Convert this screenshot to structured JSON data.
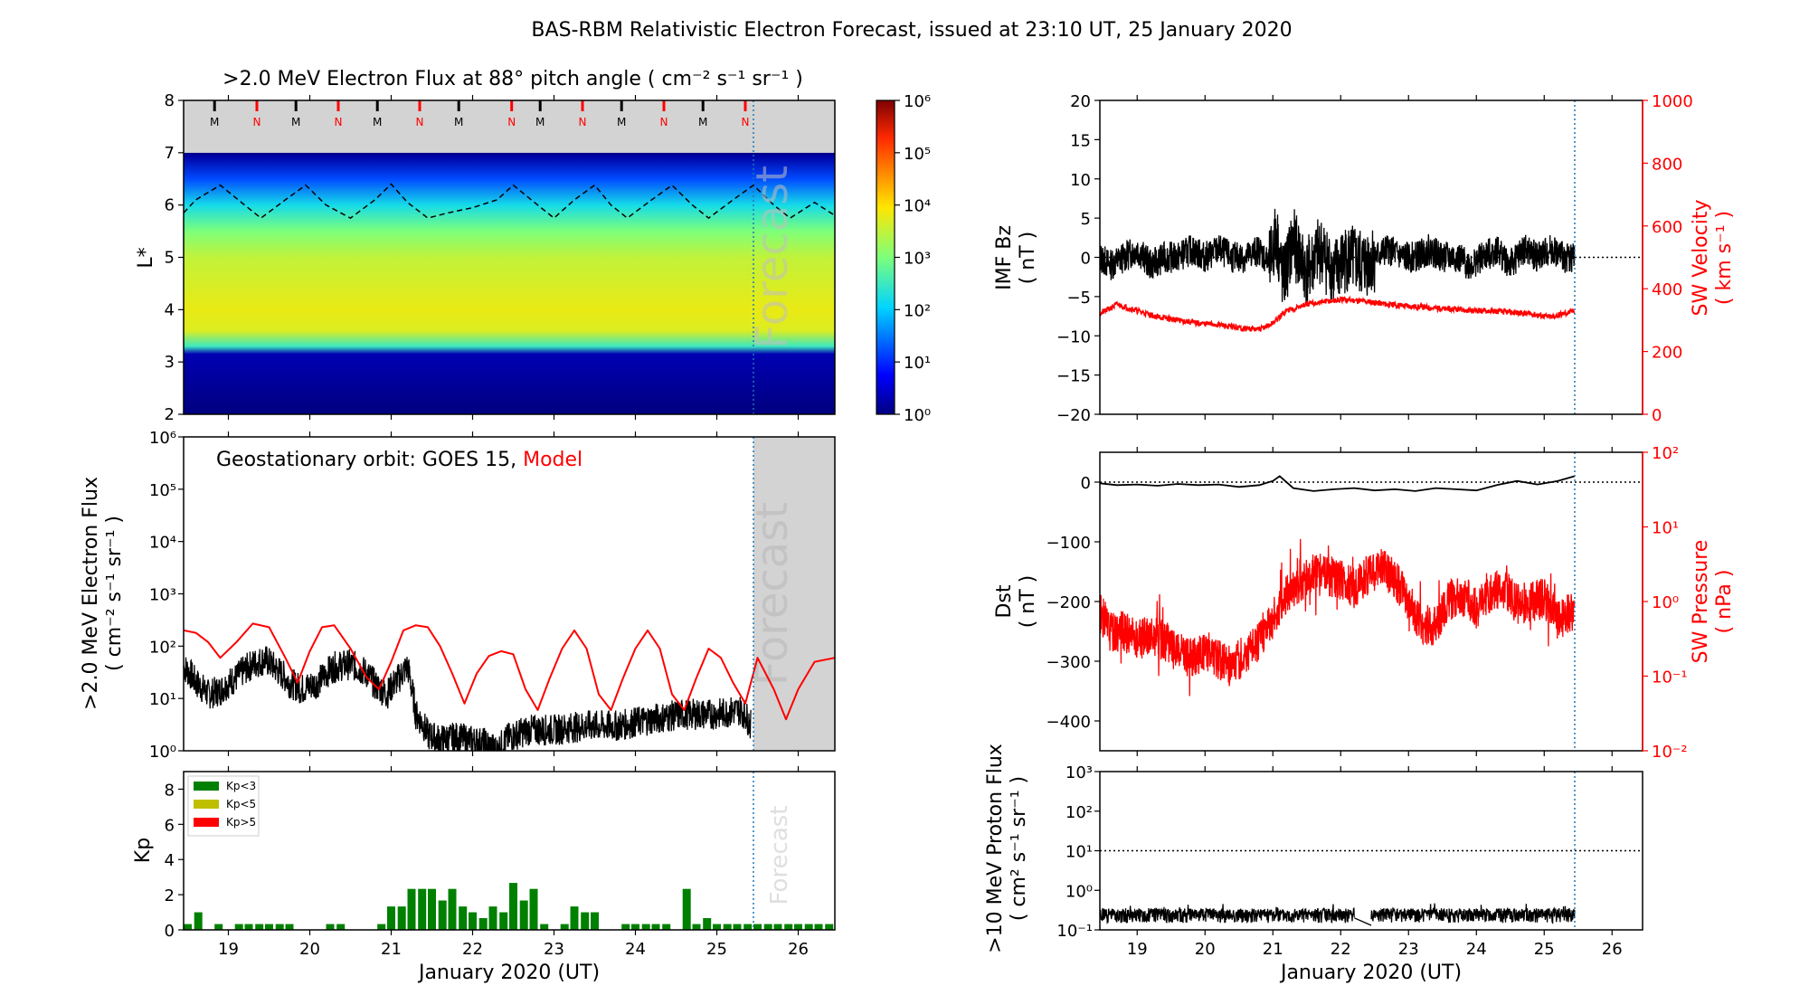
{
  "figure": {
    "title": "BAS-RBM Relativistic Electron Forecast, issued at 23:10 UT, 25 January 2020"
  },
  "colors": {
    "black": "#000000",
    "red": "#ff0000",
    "forecast_line": "#1f77b4",
    "shade": "#d3d3d3",
    "forecast_text": "#bfbfbf",
    "kp_low": "#008000",
    "kp_mid": "#bfbf00",
    "kp_high": "#ff0000"
  },
  "chart_data": [
    {
      "id": "lstar_flux",
      "type": "heatmap",
      "title": ">2.0 MeV Electron Flux at 88° pitch angle ( cm⁻² s⁻¹ sr⁻¹ )",
      "ylabel": "L*",
      "xlim": [
        18.45,
        26.45
      ],
      "ylim": [
        2,
        8
      ],
      "yticks": [
        2,
        3,
        4,
        5,
        6,
        7,
        8
      ],
      "colorbar": {
        "scale": "log",
        "range": [
          1,
          1000000
        ],
        "ticks": [
          "10⁰",
          "10¹",
          "10²",
          "10³",
          "10⁴",
          "10⁵",
          "10⁶"
        ]
      },
      "flux_profile": [
        {
          "L": 2.0,
          "log_flux": 0.0
        },
        {
          "L": 3.15,
          "log_flux": 0.3
        },
        {
          "L": 3.3,
          "log_flux": 2.5
        },
        {
          "L": 3.6,
          "log_flux": 3.7
        },
        {
          "L": 4.0,
          "log_flux": 3.8
        },
        {
          "L": 5.0,
          "log_flux": 3.5
        },
        {
          "L": 5.5,
          "log_flux": 3.0
        },
        {
          "L": 6.0,
          "log_flux": 2.2
        },
        {
          "L": 6.5,
          "log_flux": 1.2
        },
        {
          "L": 6.95,
          "log_flux": 0.2
        },
        {
          "L": 7.0,
          "log_flux": 0.0
        }
      ],
      "outer_boundary_L": 7.0,
      "outer_region": "grey",
      "geo_dashed": {
        "x": [
          18.45,
          18.6,
          18.9,
          19.2,
          19.4,
          19.7,
          19.95,
          20.2,
          20.5,
          20.8,
          21.0,
          21.2,
          21.45,
          21.7,
          22.0,
          22.3,
          22.5,
          22.8,
          23.0,
          23.25,
          23.5,
          23.7,
          23.9,
          24.2,
          24.45,
          24.7,
          24.9,
          25.2,
          25.45,
          25.7,
          25.9,
          26.2,
          26.45
        ],
        "y": [
          5.85,
          6.1,
          6.38,
          6.0,
          5.75,
          6.1,
          6.38,
          6.0,
          5.75,
          6.1,
          6.4,
          6.05,
          5.75,
          5.85,
          5.95,
          6.1,
          6.38,
          6.0,
          5.75,
          6.1,
          6.38,
          6.0,
          5.75,
          6.1,
          6.38,
          6.0,
          5.75,
          6.1,
          6.38,
          6.0,
          5.75,
          6.05,
          5.8
        ]
      },
      "markers": [
        {
          "x": 18.83,
          "label": "M",
          "color": "#000000"
        },
        {
          "x": 19.35,
          "label": "N",
          "color": "#ff0000"
        },
        {
          "x": 19.83,
          "label": "M",
          "color": "#000000"
        },
        {
          "x": 20.35,
          "label": "N",
          "color": "#ff0000"
        },
        {
          "x": 20.83,
          "label": "M",
          "color": "#000000"
        },
        {
          "x": 21.35,
          "label": "N",
          "color": "#ff0000"
        },
        {
          "x": 21.83,
          "label": "M",
          "color": "#000000"
        },
        {
          "x": 22.48,
          "label": "N",
          "color": "#ff0000"
        },
        {
          "x": 22.83,
          "label": "M",
          "color": "#000000"
        },
        {
          "x": 23.35,
          "label": "N",
          "color": "#ff0000"
        },
        {
          "x": 23.83,
          "label": "M",
          "color": "#000000"
        },
        {
          "x": 24.35,
          "label": "N",
          "color": "#ff0000"
        },
        {
          "x": 24.83,
          "label": "M",
          "color": "#000000"
        },
        {
          "x": 25.35,
          "label": "N",
          "color": "#ff0000"
        }
      ],
      "forecast_start": 25.45,
      "forecast_label": "Forecast"
    },
    {
      "id": "geo_flux",
      "type": "line",
      "ylabel": [
        ">2.0 MeV Electron Flux",
        "( cm⁻² s⁻¹ sr⁻¹ )"
      ],
      "yscale": "log",
      "ylim": [
        1,
        1000000
      ],
      "yticks": [
        "10⁰",
        "10¹",
        "10²",
        "10³",
        "10⁴",
        "10⁵",
        "10⁶"
      ],
      "xlim": [
        18.45,
        26.45
      ],
      "annotation": {
        "prefix": "Geostationary orbit:   GOES 15,  ",
        "model": "Model"
      },
      "series": [
        {
          "name": "GOES 15",
          "color": "#000000",
          "x": [
            18.45,
            18.6,
            18.75,
            18.9,
            19.1,
            19.3,
            19.45,
            19.6,
            19.75,
            19.9,
            20.1,
            20.3,
            20.5,
            20.7,
            20.8,
            20.95,
            21.1,
            21.2,
            21.25,
            21.3,
            21.45,
            21.6,
            21.8,
            21.95,
            22.15,
            22.3,
            22.45,
            22.7,
            23.0,
            23.4,
            23.8,
            24.2,
            24.6,
            25.0,
            25.3,
            25.42
          ],
          "y": [
            40,
            20,
            12,
            14,
            25,
            45,
            55,
            35,
            20,
            15,
            20,
            40,
            45,
            30,
            18,
            12,
            25,
            40,
            15,
            5,
            2,
            1.6,
            1.8,
            1.6,
            1.4,
            1.0,
            1.8,
            2.5,
            2.5,
            3,
            3,
            4,
            5,
            5,
            6,
            3
          ]
        },
        {
          "name": "Model",
          "color": "#ff0000",
          "x": [
            18.45,
            18.6,
            18.75,
            18.9,
            19.1,
            19.3,
            19.5,
            19.7,
            19.85,
            20.0,
            20.15,
            20.3,
            20.5,
            20.7,
            20.85,
            21.0,
            21.15,
            21.3,
            21.45,
            21.6,
            21.75,
            21.9,
            22.05,
            22.2,
            22.35,
            22.5,
            22.65,
            22.8,
            22.95,
            23.1,
            23.25,
            23.4,
            23.55,
            23.7,
            23.85,
            24.0,
            24.15,
            24.3,
            24.45,
            24.6,
            24.75,
            24.9,
            25.05,
            25.2,
            25.35,
            25.5,
            25.7,
            25.85,
            26.0,
            26.2,
            26.45
          ],
          "y": [
            200,
            180,
            120,
            60,
            120,
            270,
            230,
            60,
            20,
            80,
            230,
            250,
            90,
            25,
            15,
            50,
            200,
            250,
            230,
            100,
            30,
            8,
            30,
            65,
            80,
            70,
            15,
            6,
            25,
            90,
            200,
            90,
            12,
            6,
            25,
            90,
            200,
            90,
            12,
            6,
            25,
            90,
            60,
            20,
            8,
            60,
            15,
            4,
            15,
            50,
            60
          ]
        }
      ],
      "forecast_start": 25.45,
      "forecast_label": "Forecast"
    },
    {
      "id": "kp",
      "type": "bar",
      "ylabel": "Kp",
      "ylim": [
        0,
        9
      ],
      "yticks": [
        0,
        2,
        4,
        6,
        8
      ],
      "xlim": [
        18.45,
        26.45
      ],
      "xticks": [
        "19",
        "20",
        "21",
        "22",
        "23",
        "24",
        "25",
        "26"
      ],
      "xlabel": "January 2020 (UT)",
      "legend": [
        {
          "label": "Kp<3",
          "color": "#008000"
        },
        {
          "label": "Kp<5",
          "color": "#bfbf00"
        },
        {
          "label": "Kp>5",
          "color": "#ff0000"
        }
      ],
      "bar_width_days": 0.1,
      "bars": [
        [
          18.5,
          0.33
        ],
        [
          18.63,
          1.0
        ],
        [
          18.88,
          0.33
        ],
        [
          19.13,
          0.33
        ],
        [
          19.25,
          0.33
        ],
        [
          19.38,
          0.33
        ],
        [
          19.5,
          0.33
        ],
        [
          19.63,
          0.33
        ],
        [
          19.75,
          0.33
        ],
        [
          20.25,
          0.33
        ],
        [
          20.38,
          0.33
        ],
        [
          20.88,
          0.33
        ],
        [
          21.0,
          1.33
        ],
        [
          21.13,
          1.33
        ],
        [
          21.25,
          2.33
        ],
        [
          21.38,
          2.33
        ],
        [
          21.5,
          2.33
        ],
        [
          21.63,
          1.67
        ],
        [
          21.75,
          2.33
        ],
        [
          21.88,
          1.33
        ],
        [
          22.0,
          1.0
        ],
        [
          22.13,
          0.67
        ],
        [
          22.25,
          1.33
        ],
        [
          22.38,
          1.0
        ],
        [
          22.5,
          2.67
        ],
        [
          22.63,
          1.67
        ],
        [
          22.75,
          2.33
        ],
        [
          22.88,
          0.33
        ],
        [
          23.13,
          0.33
        ],
        [
          23.25,
          1.33
        ],
        [
          23.38,
          1.0
        ],
        [
          23.5,
          1.0
        ],
        [
          23.88,
          0.33
        ],
        [
          24.0,
          0.33
        ],
        [
          24.13,
          0.33
        ],
        [
          24.25,
          0.33
        ],
        [
          24.38,
          0.33
        ],
        [
          24.63,
          2.33
        ],
        [
          24.75,
          0.33
        ],
        [
          24.88,
          0.67
        ],
        [
          25.0,
          0.33
        ],
        [
          25.13,
          0.33
        ],
        [
          25.25,
          0.33
        ],
        [
          25.38,
          0.33
        ],
        [
          25.5,
          0.33
        ],
        [
          25.63,
          0.33
        ],
        [
          25.75,
          0.33
        ],
        [
          25.88,
          0.33
        ],
        [
          26.0,
          0.33
        ],
        [
          26.13,
          0.33
        ],
        [
          26.25,
          0.33
        ],
        [
          26.38,
          0.33
        ]
      ],
      "forecast_start": 25.45,
      "forecast_label": "Forecast"
    },
    {
      "id": "imf_sw",
      "type": "line",
      "ylabel_left": [
        "IMF Bz",
        "( nT )"
      ],
      "ylabel_right": [
        "SW Velocity",
        "( km s⁻¹ )"
      ],
      "ylim_left": [
        -20,
        20
      ],
      "yticks_left": [
        -20,
        -15,
        -10,
        -5,
        0,
        5,
        10,
        15,
        20
      ],
      "ylim_right": [
        0,
        1000
      ],
      "yticks_right": [
        0,
        200,
        400,
        600,
        800,
        1000
      ],
      "xlim": [
        18.45,
        26.45
      ],
      "series": [
        {
          "name": "IMF Bz",
          "color": "#000000",
          "x": [
            18.45,
            18.6,
            18.8,
            19.0,
            19.2,
            19.4,
            19.6,
            19.8,
            20.0,
            20.2,
            20.4,
            20.6,
            20.8,
            20.95,
            21.05,
            21.15,
            21.3,
            21.5,
            21.7,
            21.9,
            22.1,
            22.3,
            22.5,
            22.7,
            22.9,
            23.1,
            23.3,
            23.5,
            23.7,
            23.9,
            24.1,
            24.3,
            24.5,
            24.7,
            24.9,
            25.1,
            25.3,
            25.45
          ],
          "y": [
            0,
            -1,
            0,
            1,
            -1,
            0,
            0,
            1,
            0,
            1,
            0,
            0,
            1,
            -1,
            3,
            -3,
            2,
            -2,
            1,
            -2,
            0,
            -1,
            0,
            1,
            0,
            0,
            1,
            0,
            0,
            -1,
            0,
            1,
            -1,
            1,
            0,
            1,
            0,
            0
          ]
        },
        {
          "name": "SW Velocity",
          "color": "#ff0000",
          "x": [
            18.45,
            18.7,
            19.0,
            19.3,
            19.6,
            19.9,
            20.2,
            20.5,
            20.8,
            21.0,
            21.2,
            21.5,
            21.8,
            22.1,
            22.4,
            22.7,
            23.0,
            23.3,
            23.6,
            23.9,
            24.2,
            24.5,
            24.8,
            25.1,
            25.45
          ],
          "y": [
            320,
            350,
            330,
            310,
            300,
            290,
            285,
            275,
            270,
            290,
            330,
            350,
            360,
            365,
            360,
            350,
            345,
            340,
            335,
            330,
            330,
            325,
            320,
            310,
            330
          ]
        }
      ],
      "ref_line_left": 0,
      "forecast_start": 25.45
    },
    {
      "id": "dst_pressure",
      "type": "line",
      "ylabel_left": [
        "Dst",
        "( nT )"
      ],
      "ylabel_right": [
        "SW Pressure",
        "( nPa )"
      ],
      "ylim_left": [
        -450,
        50
      ],
      "yticks_left": [
        -400,
        -300,
        -200,
        -100,
        0
      ],
      "yscale_right": "log",
      "ylim_right": [
        0.01,
        100
      ],
      "yticks_right": [
        "10⁻²",
        "10⁻¹",
        "10⁰",
        "10¹",
        "10²"
      ],
      "xlim": [
        18.45,
        26.45
      ],
      "series": [
        {
          "name": "Dst",
          "color": "#000000",
          "x": [
            18.45,
            18.7,
            19.0,
            19.3,
            19.6,
            19.9,
            20.2,
            20.5,
            20.8,
            21.0,
            21.1,
            21.3,
            21.6,
            21.9,
            22.2,
            22.5,
            22.8,
            23.1,
            23.4,
            23.7,
            24.0,
            24.3,
            24.6,
            24.9,
            25.2,
            25.45
          ],
          "y": [
            -2,
            -5,
            -4,
            -6,
            -3,
            -5,
            -4,
            -8,
            -5,
            2,
            10,
            -10,
            -15,
            -12,
            -10,
            -14,
            -12,
            -15,
            -10,
            -12,
            -14,
            -5,
            2,
            -4,
            2,
            10
          ]
        },
        {
          "name": "SW Pressure",
          "color": "#ff0000",
          "x": [
            18.45,
            18.6,
            18.8,
            19.0,
            19.2,
            19.4,
            19.6,
            19.8,
            20.0,
            20.2,
            20.4,
            20.6,
            20.8,
            21.0,
            21.2,
            21.4,
            21.6,
            21.8,
            22.0,
            22.2,
            22.4,
            22.6,
            22.8,
            23.0,
            23.2,
            23.4,
            23.6,
            23.8,
            24.0,
            24.2,
            24.4,
            24.6,
            24.8,
            25.0,
            25.2,
            25.45
          ],
          "y": [
            0.7,
            0.4,
            0.4,
            0.3,
            0.35,
            0.3,
            0.2,
            0.18,
            0.22,
            0.17,
            0.13,
            0.2,
            0.3,
            0.6,
            1.2,
            1.8,
            2.5,
            2.2,
            2.0,
            1.5,
            2.2,
            2.8,
            2.0,
            0.9,
            0.5,
            0.45,
            1.0,
            1.2,
            0.8,
            1.3,
            1.5,
            0.9,
            1.0,
            1.1,
            0.6,
            0.7
          ]
        }
      ],
      "ref_line_left": 0,
      "forecast_start": 25.45
    },
    {
      "id": "proton_flux",
      "type": "line",
      "ylabel": [
        ">10 MeV Proton Flux",
        "( cm² s⁻¹ sr⁻¹ )"
      ],
      "yscale": "log",
      "ylim": [
        0.1,
        1000
      ],
      "yticks": [
        "10⁻¹",
        "10⁰",
        "10¹",
        "10²",
        "10³"
      ],
      "xlim": [
        18.45,
        26.45
      ],
      "xticks": [
        "19",
        "20",
        "21",
        "22",
        "23",
        "24",
        "25",
        "26"
      ],
      "xlabel": "January 2020 (UT)",
      "ref_line": 10,
      "series": [
        {
          "name": "Proton flux",
          "color": "#000000",
          "segments": [
            [
              18.45,
              22.2
            ],
            [
              22.45,
              25.45
            ]
          ],
          "y_low": 0.15,
          "y_high": 0.35
        }
      ],
      "forecast_start": 25.45
    }
  ]
}
